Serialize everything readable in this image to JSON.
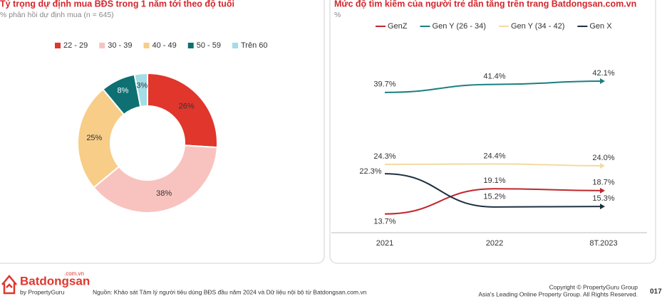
{
  "chart_data": [
    {
      "type": "donut",
      "title": "Tỷ trọng dự định mua BĐS trong 1 năm tới theo độ tuổi",
      "subtitle": "% phản hồi dự định mua (n = 645)",
      "categories": [
        "22 - 29",
        "30 - 39",
        "40 - 49",
        "50 - 59",
        "Trên 60"
      ],
      "values": [
        26,
        38,
        25,
        8,
        3
      ],
      "value_labels": [
        "26%",
        "38%",
        "25%",
        "8%",
        "3%"
      ],
      "colors": [
        "#e0362c",
        "#f8c3bf",
        "#f7cd88",
        "#0e7073",
        "#a3dde5"
      ]
    },
    {
      "type": "line",
      "title": "Mức độ tìm kiếm của người trẻ dần tăng trên trang Batdongsan.com.vn",
      "subtitle": "%",
      "categories": [
        "2021",
        "2022",
        "8T.2023"
      ],
      "ylim": [
        10,
        45
      ],
      "series": [
        {
          "name": "GenZ",
          "color": "#c0272d",
          "values": [
            13.7,
            19.1,
            18.7
          ],
          "value_labels": [
            "13.7%",
            "19.1%",
            "18.7%"
          ]
        },
        {
          "name": "Gen Y (26 - 34)",
          "color": "#1a7f80",
          "values": [
            39.7,
            41.4,
            42.1
          ],
          "value_labels": [
            "39.7%",
            "41.4%",
            "42.1%"
          ]
        },
        {
          "name": "Gen Y (34 - 42)",
          "color": "#f2dba0",
          "values": [
            24.3,
            24.4,
            24.0
          ],
          "value_labels": [
            "24.3%",
            "24.4%",
            "24.0%"
          ]
        },
        {
          "name": "Gen X",
          "color": "#1f3040",
          "values": [
            22.3,
            15.2,
            15.3
          ],
          "value_labels": [
            "22.3%",
            "15.2%",
            "15.3%"
          ]
        }
      ]
    }
  ],
  "footer": {
    "brand": "Batdongsan",
    "brand_suffix": ".com.vn",
    "brand_by": "by PropertyGuru",
    "source": "Nguồn: Khảo sát Tâm lý người tiêu dùng BĐS đầu năm 2024 và Dữ liệu nội bộ từ Batdongsan.com.vn",
    "copyright": "Copyright © PropertyGuru Group",
    "rights": "Asia's Leading Online Property Group. All Rights Reserved.",
    "page": "017"
  }
}
